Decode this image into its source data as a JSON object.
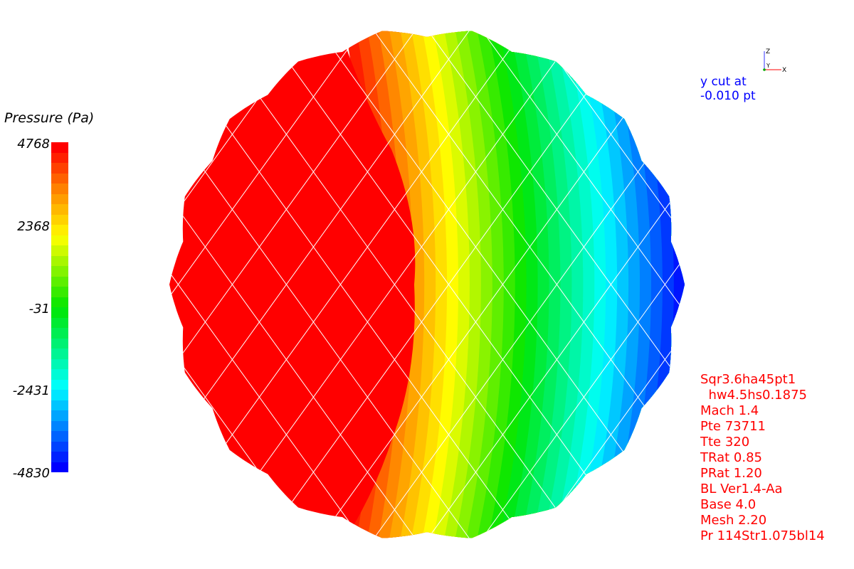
{
  "legend": {
    "title": "Pressure (Pa)",
    "ticks": [
      "4768",
      "2368",
      "-31",
      "-2431",
      "-4830"
    ],
    "tick_values": [
      4768,
      2368,
      -31,
      -2431,
      -4830
    ],
    "range": [
      -4830,
      4768
    ],
    "band_count": 32,
    "colormap": "rainbow (blue → cyan → green → yellow → red)"
  },
  "axes_triad": {
    "z_label": "Z",
    "y_label": "Y",
    "x_label": "X",
    "colors": {
      "z": "#3333ff",
      "y": "#00aa00",
      "x": "#ff0000"
    }
  },
  "cut": {
    "line1": "y cut at",
    "line2": "-0.010 pt"
  },
  "info": {
    "lines": [
      "Sqr3.6ha45pt1",
      "  hw4.5hs0.1875",
      "Mach 1.4",
      "Pte 73711",
      "Tte 320",
      "TRat 0.85",
      "PRat 1.20",
      "BL Ver1.4-Aa",
      "Base 4.0",
      "Mesh 2.20",
      "Pr 114Str1.075bl14"
    ]
  },
  "contour": {
    "field": "Pressure",
    "pattern": "high pressure on left (red), decreasing to low pressure on right (cyan/blue)",
    "colors": {
      "info_text": "#ff0000",
      "cut_text": "#0000ff",
      "grid_lines": "#ffffff"
    }
  }
}
